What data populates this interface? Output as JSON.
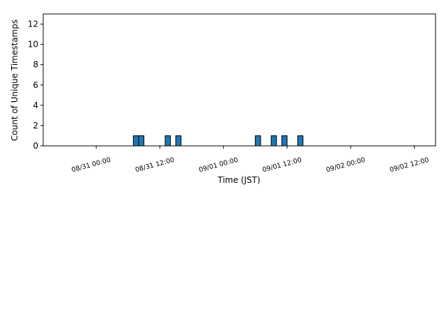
{
  "chart_data": {
    "type": "histogram",
    "xlabel": "Time (JST)",
    "ylabel": "Count of Unique Timestamps",
    "bins": [
      "08/30 15:00",
      "08/31 07:00",
      "08/31 08:00",
      "08/31 09:00",
      "08/31 13:00",
      "08/31 14:00",
      "08/31 15:00",
      "08/31 16:00",
      "09/01 06:00",
      "09/01 07:00",
      "09/01 09:00",
      "09/01 10:00",
      "09/01 11:00",
      "09/01 12:00",
      "09/01 14:00",
      "09/01 15:00",
      "09/02 14:00"
    ],
    "counts": [
      0,
      1,
      1,
      0,
      1,
      0,
      1,
      0,
      1,
      0,
      1,
      0,
      1,
      0,
      1,
      0
    ],
    "color": "#1f77b4",
    "edgecolor": "#000000",
    "xlim": [
      "08/30 14:00",
      "09/02 16:00"
    ],
    "xticks": [
      "08/31 00:00",
      "08/31 12:00",
      "09/01 00:00",
      "09/01 12:00",
      "09/02 00:00",
      "09/02 12:00"
    ],
    "ylim": [
      0,
      13
    ],
    "yticks": [
      0,
      2,
      4,
      6,
      8,
      10,
      12
    ]
  }
}
